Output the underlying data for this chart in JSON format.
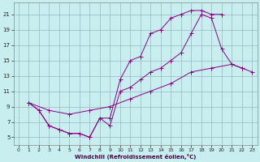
{
  "xlabel": "Windchill (Refroidissement éolien,°C)",
  "bg_color": "#c8eef0",
  "grid_color": "#9ab8c0",
  "line_color": "#880088",
  "marker_color": "#880088",
  "xlim": [
    -0.5,
    23.5
  ],
  "ylim": [
    4.0,
    22.5
  ],
  "xticks": [
    0,
    1,
    2,
    3,
    4,
    5,
    6,
    7,
    8,
    9,
    10,
    11,
    12,
    13,
    14,
    15,
    16,
    17,
    18,
    19,
    20,
    21,
    22,
    23
  ],
  "yticks": [
    5,
    7,
    9,
    11,
    13,
    15,
    17,
    19,
    21
  ],
  "curve1_x": [
    1,
    2,
    3,
    4,
    5,
    6,
    7,
    8,
    9,
    10,
    11,
    12,
    13,
    14,
    15,
    16,
    17,
    18,
    19,
    20
  ],
  "curve1_y": [
    9.5,
    8.5,
    6.5,
    6.0,
    5.5,
    5.5,
    5.0,
    7.5,
    7.5,
    12.5,
    15.0,
    15.5,
    18.5,
    19.0,
    20.5,
    21.0,
    21.5,
    21.5,
    21.0,
    21.0
  ],
  "curve2_x": [
    1,
    2,
    3,
    4,
    5,
    6,
    7,
    8,
    9,
    10,
    11,
    12,
    13,
    14,
    15,
    16,
    17,
    18,
    19,
    20,
    21,
    22
  ],
  "curve2_y": [
    9.5,
    8.5,
    6.5,
    6.0,
    5.5,
    5.5,
    5.0,
    7.5,
    6.5,
    11.0,
    11.5,
    12.5,
    13.5,
    14.0,
    15.0,
    16.0,
    18.5,
    21.0,
    20.5,
    16.5,
    14.5,
    14.0
  ],
  "curve3_x": [
    1,
    3,
    5,
    7,
    9,
    11,
    13,
    15,
    17,
    19,
    21,
    22,
    23
  ],
  "curve3_y": [
    9.5,
    8.5,
    8.0,
    8.5,
    9.0,
    10.0,
    11.0,
    12.0,
    13.5,
    14.0,
    14.5,
    14.0,
    13.5
  ]
}
